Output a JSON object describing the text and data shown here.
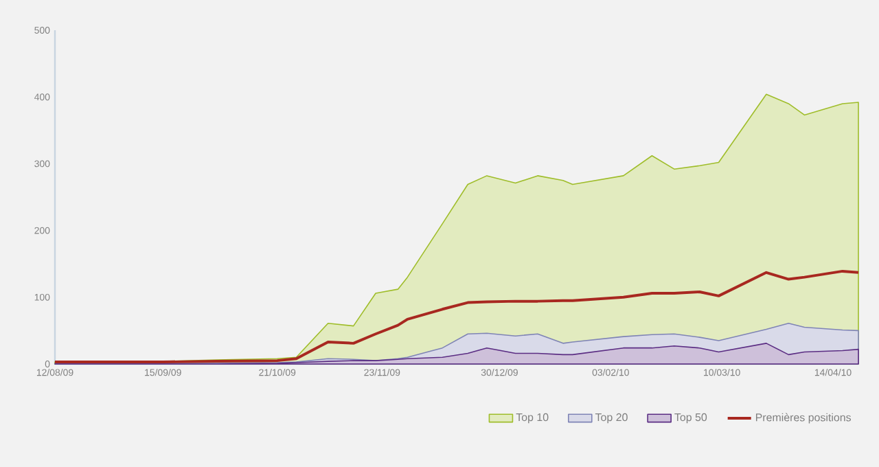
{
  "chart_data": {
    "type": "area",
    "x": [
      "2009-08-12",
      "2009-09-15",
      "2009-10-02",
      "2009-10-21",
      "2009-10-27",
      "2009-11-06",
      "2009-11-14",
      "2009-11-21",
      "2009-11-28",
      "2009-12-01",
      "2009-12-12",
      "2009-12-20",
      "2009-12-26",
      "2010-01-04",
      "2010-01-11",
      "2010-01-19",
      "2010-01-22",
      "2010-02-07",
      "2010-02-16",
      "2010-02-23",
      "2010-03-03",
      "2010-03-09",
      "2010-03-24",
      "2010-03-31",
      "2010-04-05",
      "2010-04-17",
      "2010-04-22"
    ],
    "series": [
      {
        "name": "Top 10",
        "color": "#9fbd2a",
        "values": [
          3,
          4,
          6,
          8,
          10,
          61,
          57,
          106,
          112,
          130,
          210,
          269,
          282,
          271,
          282,
          275,
          269,
          282,
          312,
          292,
          297,
          302,
          404,
          390,
          373,
          390,
          392
        ]
      },
      {
        "name": "Top 20",
        "color": "#7f84b5",
        "values": [
          1,
          1,
          1,
          2,
          3,
          8,
          7,
          5,
          8,
          10,
          24,
          45,
          46,
          42,
          45,
          31,
          33,
          41,
          44,
          45,
          40,
          35,
          52,
          61,
          55,
          51,
          50
        ]
      },
      {
        "name": "Top 50",
        "color": "#5b2d83",
        "values": [
          0,
          0,
          0,
          1,
          2,
          4,
          5,
          5,
          7,
          8,
          10,
          16,
          24,
          16,
          16,
          14,
          14,
          24,
          24,
          27,
          24,
          18,
          31,
          14,
          18,
          20,
          22
        ]
      },
      {
        "name": "Premières positions",
        "color": "#a82820",
        "type": "line",
        "values": [
          3,
          3,
          4,
          5,
          8,
          33,
          31,
          45,
          58,
          67,
          82,
          92,
          93,
          94,
          94,
          95,
          95,
          100,
          106,
          106,
          108,
          102,
          137,
          127,
          130,
          139,
          137
        ]
      }
    ],
    "xlim": [
      "2009-08-12",
      "2010-04-22"
    ],
    "xticks": [
      {
        "value": "2009-08-12",
        "label": "12/08/09"
      },
      {
        "value": "2009-09-15",
        "label": "15/09/09"
      },
      {
        "value": "2009-10-21",
        "label": "21/10/09"
      },
      {
        "value": "2009-11-23",
        "label": "23/11/09"
      },
      {
        "value": "2009-12-30",
        "label": "30/12/09"
      },
      {
        "value": "2010-02-03",
        "label": "03/02/10"
      },
      {
        "value": "2010-03-10",
        "label": "10/03/10"
      },
      {
        "value": "2010-04-14",
        "label": "14/04/10"
      }
    ],
    "ylim": [
      0,
      500
    ],
    "yticks": [
      0,
      100,
      200,
      300,
      400,
      500
    ],
    "legend": "bottom right",
    "grid": false,
    "marker": "none",
    "line_style": "solid"
  }
}
